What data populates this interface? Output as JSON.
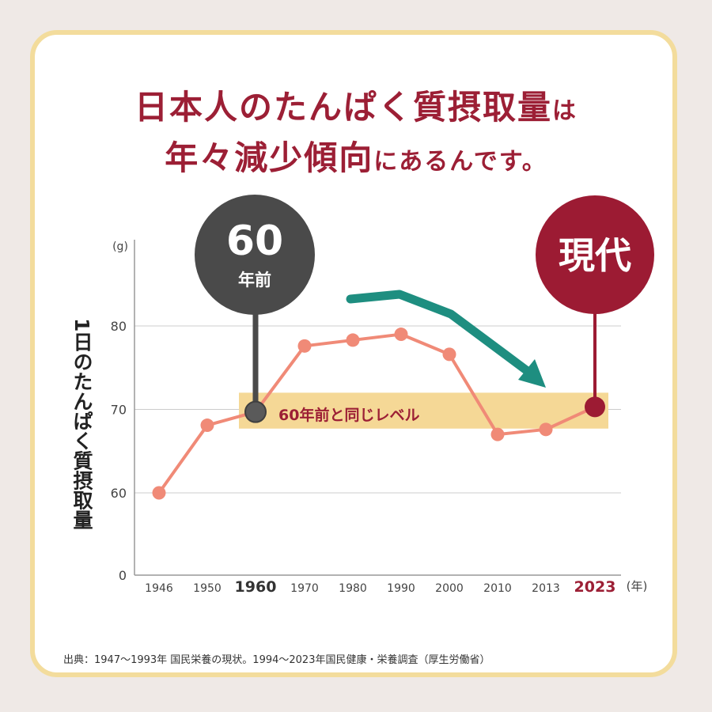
{
  "headline": {
    "line1_main": "日本人のたんぱく質摂取量",
    "line1_tail": "は",
    "line2_main": "年々減少傾向",
    "line2_tail": "にあるんです。"
  },
  "y_axis_label": "1日のたんぱく質摂取量",
  "source": "出典：1947〜1993年 国民栄養の現状。1994〜2023年国民健康・栄養調査（厚生労働省）",
  "callout_past": {
    "number": "60",
    "unit": "年前",
    "color": "#4a4a4a"
  },
  "callout_now": {
    "label": "現代",
    "color": "#9c1b33"
  },
  "band_label": "60年前と同じレベル",
  "colors": {
    "line": "#f08a77",
    "band": "#f5d896",
    "arrow": "#1e8e80",
    "accent": "#9c1f35",
    "grid": "#cccccc"
  },
  "chart_data": {
    "type": "line",
    "categories": [
      "1946",
      "1950",
      "1960",
      "1970",
      "1980",
      "1990",
      "2000",
      "2010",
      "2013",
      "2023"
    ],
    "values": [
      60,
      68.1,
      69.7,
      77.6,
      78.3,
      79.0,
      76.6,
      67.0,
      67.6,
      70.3
    ],
    "y_unit": "(g)",
    "x_unit": "(年)",
    "y_ticks": [
      0,
      60,
      70,
      80
    ],
    "highlight_categories": [
      "1960",
      "2023"
    ],
    "band_range": [
      67.7,
      72
    ],
    "grid": true
  }
}
